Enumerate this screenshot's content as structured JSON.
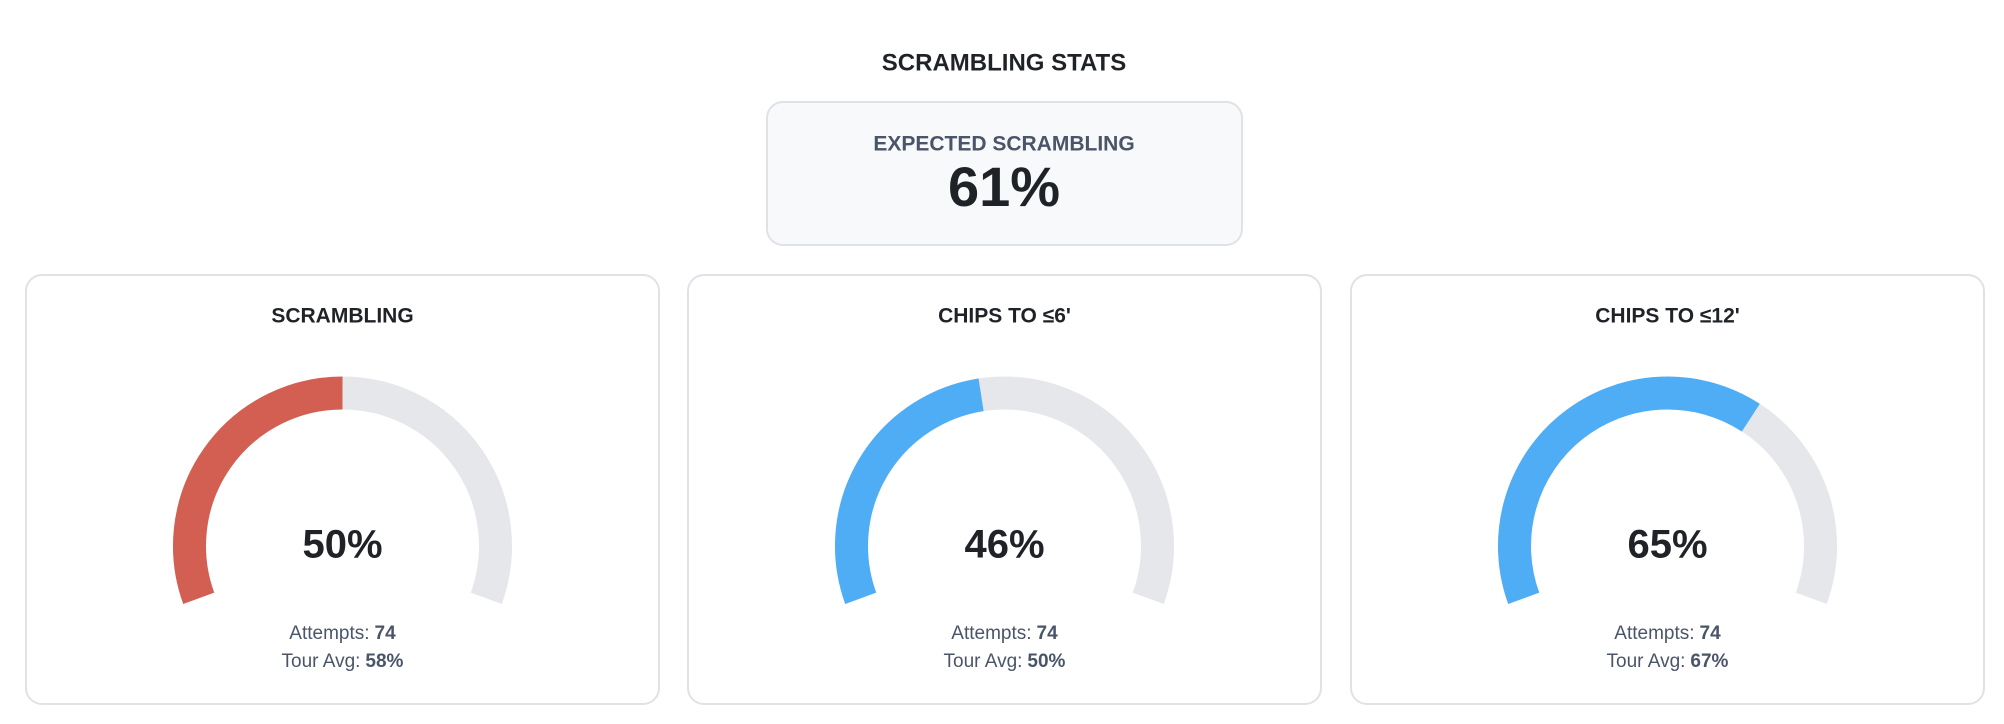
{
  "header": {
    "title": "SCRAMBLING STATS"
  },
  "expected": {
    "label": "EXPECTED SCRAMBLING",
    "value": "61%"
  },
  "gauges": [
    {
      "title": "SCRAMBLING",
      "value": 50,
      "value_label": "50%",
      "color": "#d35f52",
      "attempts_label": "Attempts:",
      "attempts": 74,
      "tour_avg_label": "Tour Avg:",
      "tour_avg": "58%"
    },
    {
      "title": "CHIPS TO ≤6'",
      "value": 46,
      "value_label": "46%",
      "color": "#4fadf5",
      "attempts_label": "Attempts:",
      "attempts": 74,
      "tour_avg_label": "Tour Avg:",
      "tour_avg": "50%"
    },
    {
      "title": "CHIPS TO ≤12'",
      "value": 65,
      "value_label": "65%",
      "color": "#4fadf5",
      "attempts_label": "Attempts:",
      "attempts": 74,
      "tour_avg_label": "Tour Avg:",
      "tour_avg": "67%"
    }
  ]
}
